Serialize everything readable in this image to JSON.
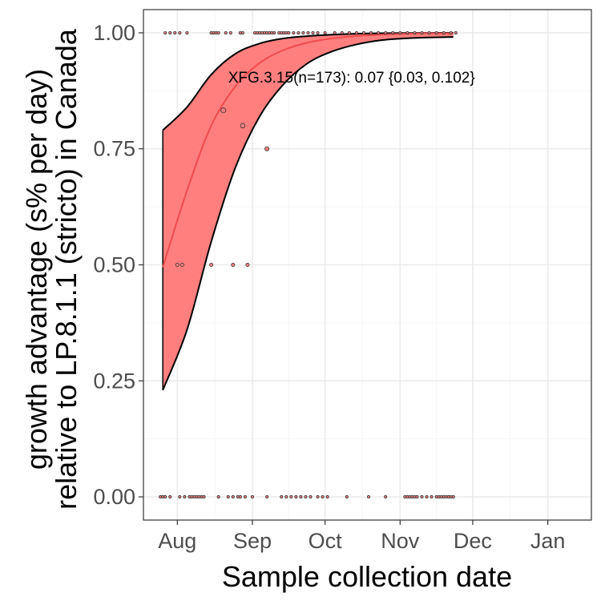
{
  "chart_data": {
    "type": "line",
    "title": "",
    "xlabel": "Sample collection date",
    "ylabel_lines": [
      "growth advantage (s% per day)",
      "relative to LP.8.1.1 (stricto) in Canada"
    ],
    "x_ticks": [
      {
        "date": "2025-08-01",
        "label": "Aug"
      },
      {
        "date": "2025-09-01",
        "label": "Sep"
      },
      {
        "date": "2025-10-01",
        "label": "Oct"
      },
      {
        "date": "2025-11-01",
        "label": "Nov"
      },
      {
        "date": "2025-12-01",
        "label": "Dec"
      },
      {
        "date": "2026-01-01",
        "label": "Jan"
      }
    ],
    "xlim": [
      "2025-07-18",
      "2026-01-19"
    ],
    "y_ticks": [
      0,
      0.25,
      0.5,
      0.75,
      1
    ],
    "y_tick_labels": [
      "0.00",
      "0.25",
      "0.50",
      "0.75",
      "1.00"
    ],
    "ylim": [
      -0.05,
      1.05
    ],
    "grid": true,
    "colors": {
      "fit": "#f04b4b",
      "band": "#ff7f7f",
      "band_edge": "#000000",
      "points": "#f08080",
      "grid_major": "#ebebeb",
      "grid_minor": "#f5f5f5",
      "panel_border": "#333333"
    },
    "annotation": {
      "text": "XFG.3.15(n=173): 0.07 {0.03, 0.102}",
      "date": "2025-08-22",
      "y": 0.905
    },
    "series": [
      {
        "x": [
          "2025-07-26",
          "2025-08-05",
          "2025-08-15",
          "2025-08-25",
          "2025-09-04",
          "2025-09-14",
          "2025-09-24",
          "2025-10-04",
          "2025-10-14",
          "2025-10-24",
          "2025-11-03",
          "2025-11-13",
          "2025-11-23"
        ],
        "fit": [
          0.495,
          0.66,
          0.8,
          0.885,
          0.935,
          0.963,
          0.979,
          0.988,
          0.993,
          0.996,
          0.998,
          0.999,
          0.999
        ],
        "lower": [
          0.23,
          0.36,
          0.55,
          0.71,
          0.82,
          0.89,
          0.935,
          0.96,
          0.975,
          0.984,
          0.988,
          0.99,
          0.991
        ],
        "upper": [
          0.79,
          0.84,
          0.91,
          0.955,
          0.977,
          0.988,
          0.993,
          0.996,
          0.998,
          0.999,
          0.9995,
          0.9998,
          0.9999
        ]
      }
    ],
    "points": [
      {
        "x": "2025-07-27",
        "y": 1,
        "n": 1
      },
      {
        "x": "2025-07-29",
        "y": 1,
        "n": 1
      },
      {
        "x": "2025-07-31",
        "y": 1,
        "n": 1
      },
      {
        "x": "2025-08-02",
        "y": 1,
        "n": 1
      },
      {
        "x": "2025-08-05",
        "y": 1,
        "n": 1
      },
      {
        "x": "2025-08-15",
        "y": 1,
        "n": 1
      },
      {
        "x": "2025-08-16",
        "y": 1,
        "n": 1
      },
      {
        "x": "2025-08-17",
        "y": 1,
        "n": 1
      },
      {
        "x": "2025-08-18",
        "y": 1,
        "n": 1
      },
      {
        "x": "2025-08-21",
        "y": 1,
        "n": 1
      },
      {
        "x": "2025-08-23",
        "y": 1,
        "n": 1
      },
      {
        "x": "2025-08-27",
        "y": 1,
        "n": 1
      },
      {
        "x": "2025-08-28",
        "y": 1,
        "n": 1
      },
      {
        "x": "2025-09-02",
        "y": 1,
        "n": 1
      },
      {
        "x": "2025-09-03",
        "y": 1,
        "n": 1
      },
      {
        "x": "2025-09-04",
        "y": 1,
        "n": 1
      },
      {
        "x": "2025-09-05",
        "y": 1,
        "n": 1
      },
      {
        "x": "2025-09-06",
        "y": 1,
        "n": 1
      },
      {
        "x": "2025-09-07",
        "y": 1,
        "n": 1
      },
      {
        "x": "2025-09-08",
        "y": 1,
        "n": 1
      },
      {
        "x": "2025-09-09",
        "y": 1,
        "n": 1
      },
      {
        "x": "2025-09-10",
        "y": 1,
        "n": 1
      },
      {
        "x": "2025-09-12",
        "y": 1,
        "n": 1
      },
      {
        "x": "2025-09-13",
        "y": 1,
        "n": 1
      },
      {
        "x": "2025-09-14",
        "y": 1,
        "n": 1
      },
      {
        "x": "2025-09-15",
        "y": 1,
        "n": 1
      },
      {
        "x": "2025-09-16",
        "y": 1,
        "n": 1
      },
      {
        "x": "2025-09-18",
        "y": 1,
        "n": 1
      },
      {
        "x": "2025-09-20",
        "y": 1,
        "n": 1
      },
      {
        "x": "2025-09-22",
        "y": 1,
        "n": 1
      },
      {
        "x": "2025-09-24",
        "y": 1,
        "n": 1
      },
      {
        "x": "2025-09-26",
        "y": 1,
        "n": 1
      },
      {
        "x": "2025-09-28",
        "y": 1,
        "n": 1
      },
      {
        "x": "2025-10-01",
        "y": 1,
        "n": 1
      },
      {
        "x": "2025-10-05",
        "y": 1,
        "n": 1
      },
      {
        "x": "2025-10-08",
        "y": 1,
        "n": 1
      },
      {
        "x": "2025-10-11",
        "y": 1,
        "n": 1
      },
      {
        "x": "2025-10-14",
        "y": 1,
        "n": 1
      },
      {
        "x": "2025-10-17",
        "y": 1,
        "n": 1
      },
      {
        "x": "2025-10-20",
        "y": 1,
        "n": 1
      },
      {
        "x": "2025-10-23",
        "y": 1,
        "n": 1
      },
      {
        "x": "2025-10-26",
        "y": 1,
        "n": 1
      },
      {
        "x": "2025-10-29",
        "y": 1,
        "n": 1
      },
      {
        "x": "2025-11-01",
        "y": 1,
        "n": 1
      },
      {
        "x": "2025-11-04",
        "y": 1,
        "n": 1
      },
      {
        "x": "2025-11-07",
        "y": 1,
        "n": 1
      },
      {
        "x": "2025-11-10",
        "y": 1,
        "n": 1
      },
      {
        "x": "2025-11-13",
        "y": 1,
        "n": 1
      },
      {
        "x": "2025-11-16",
        "y": 1,
        "n": 1
      },
      {
        "x": "2025-11-19",
        "y": 1,
        "n": 1
      },
      {
        "x": "2025-11-22",
        "y": 1,
        "n": 1
      },
      {
        "x": "2025-11-24",
        "y": 1,
        "n": 1
      },
      {
        "x": "2025-08-20",
        "y": 0.833,
        "n": 6
      },
      {
        "x": "2025-08-28",
        "y": 0.8,
        "n": 5
      },
      {
        "x": "2025-09-07",
        "y": 0.75,
        "n": 4
      },
      {
        "x": "2025-08-01",
        "y": 0.5,
        "n": 2
      },
      {
        "x": "2025-08-03",
        "y": 0.5,
        "n": 2
      },
      {
        "x": "2025-08-15",
        "y": 0.5,
        "n": 2
      },
      {
        "x": "2025-08-24",
        "y": 0.5,
        "n": 2
      },
      {
        "x": "2025-08-30",
        "y": 0.5,
        "n": 2
      },
      {
        "x": "2025-07-25",
        "y": 0,
        "n": 1
      },
      {
        "x": "2025-07-26",
        "y": 0,
        "n": 1
      },
      {
        "x": "2025-07-27",
        "y": 0,
        "n": 1
      },
      {
        "x": "2025-07-29",
        "y": 0,
        "n": 1
      },
      {
        "x": "2025-08-02",
        "y": 0,
        "n": 1
      },
      {
        "x": "2025-08-04",
        "y": 0,
        "n": 1
      },
      {
        "x": "2025-08-06",
        "y": 0,
        "n": 1
      },
      {
        "x": "2025-08-07",
        "y": 0,
        "n": 1
      },
      {
        "x": "2025-08-08",
        "y": 0,
        "n": 1
      },
      {
        "x": "2025-08-09",
        "y": 0,
        "n": 1
      },
      {
        "x": "2025-08-10",
        "y": 0,
        "n": 1
      },
      {
        "x": "2025-08-11",
        "y": 0,
        "n": 1
      },
      {
        "x": "2025-08-12",
        "y": 0,
        "n": 1
      },
      {
        "x": "2025-08-18",
        "y": 0,
        "n": 1
      },
      {
        "x": "2025-08-22",
        "y": 0,
        "n": 1
      },
      {
        "x": "2025-08-24",
        "y": 0,
        "n": 1
      },
      {
        "x": "2025-08-26",
        "y": 0,
        "n": 1
      },
      {
        "x": "2025-08-27",
        "y": 0,
        "n": 1
      },
      {
        "x": "2025-08-29",
        "y": 0,
        "n": 1
      },
      {
        "x": "2025-09-01",
        "y": 0,
        "n": 1
      },
      {
        "x": "2025-09-07",
        "y": 0,
        "n": 1
      },
      {
        "x": "2025-09-13",
        "y": 0,
        "n": 1
      },
      {
        "x": "2025-09-15",
        "y": 0,
        "n": 1
      },
      {
        "x": "2025-09-17",
        "y": 0,
        "n": 1
      },
      {
        "x": "2025-09-19",
        "y": 0,
        "n": 1
      },
      {
        "x": "2025-09-21",
        "y": 0,
        "n": 1
      },
      {
        "x": "2025-09-23",
        "y": 0,
        "n": 1
      },
      {
        "x": "2025-09-25",
        "y": 0,
        "n": 1
      },
      {
        "x": "2025-09-28",
        "y": 0,
        "n": 1
      },
      {
        "x": "2025-09-30",
        "y": 0,
        "n": 1
      },
      {
        "x": "2025-10-02",
        "y": 0,
        "n": 1
      },
      {
        "x": "2025-10-10",
        "y": 0,
        "n": 1
      },
      {
        "x": "2025-10-19",
        "y": 0,
        "n": 1
      },
      {
        "x": "2025-10-26",
        "y": 0,
        "n": 1
      },
      {
        "x": "2025-11-03",
        "y": 0,
        "n": 1
      },
      {
        "x": "2025-11-04",
        "y": 0,
        "n": 1
      },
      {
        "x": "2025-11-05",
        "y": 0,
        "n": 1
      },
      {
        "x": "2025-11-06",
        "y": 0,
        "n": 1
      },
      {
        "x": "2025-11-07",
        "y": 0,
        "n": 1
      },
      {
        "x": "2025-11-08",
        "y": 0,
        "n": 1
      },
      {
        "x": "2025-11-10",
        "y": 0,
        "n": 1
      },
      {
        "x": "2025-11-12",
        "y": 0,
        "n": 1
      },
      {
        "x": "2025-11-14",
        "y": 0,
        "n": 1
      },
      {
        "x": "2025-11-16",
        "y": 0,
        "n": 1
      },
      {
        "x": "2025-11-17",
        "y": 0,
        "n": 1
      },
      {
        "x": "2025-11-18",
        "y": 0,
        "n": 1
      },
      {
        "x": "2025-11-19",
        "y": 0,
        "n": 1
      },
      {
        "x": "2025-11-20",
        "y": 0,
        "n": 1
      },
      {
        "x": "2025-11-21",
        "y": 0,
        "n": 1
      },
      {
        "x": "2025-11-22",
        "y": 0,
        "n": 1
      },
      {
        "x": "2025-11-23",
        "y": 0,
        "n": 1
      }
    ]
  }
}
